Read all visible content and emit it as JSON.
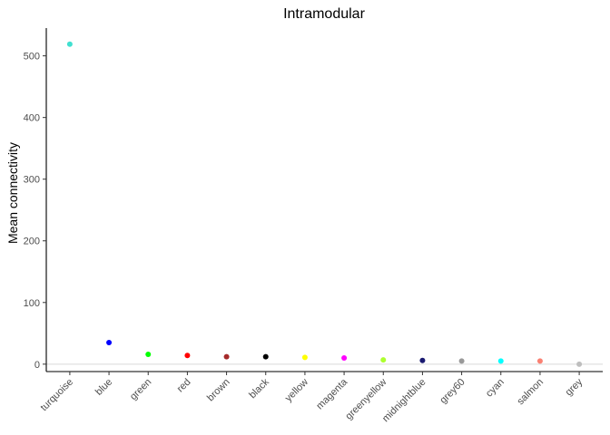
{
  "chart_data": {
    "type": "scatter",
    "title": "Intramodular",
    "xlabel": "",
    "ylabel": "Mean connectivity",
    "ylim": [
      -12,
      545
    ],
    "yticks": [
      0,
      100,
      200,
      300,
      400,
      500
    ],
    "grid": false,
    "reference_line_y": 0,
    "categories": [
      "turquoise",
      "blue",
      "green",
      "red",
      "brown",
      "black",
      "yellow",
      "magenta",
      "greenyellow",
      "midnightblue",
      "grey60",
      "cyan",
      "salmon",
      "grey"
    ],
    "values": [
      519,
      35,
      16,
      14,
      12,
      12,
      11,
      10,
      7,
      6,
      5,
      5,
      5,
      0
    ],
    "colors": [
      "#40E0D0",
      "#0000FF",
      "#00FF00",
      "#FF0000",
      "#A52A2A",
      "#000000",
      "#FFFF00",
      "#FF00FF",
      "#ADFF2F",
      "#191970",
      "#999999",
      "#00FFFF",
      "#FA8072",
      "#BEBEBE"
    ]
  }
}
